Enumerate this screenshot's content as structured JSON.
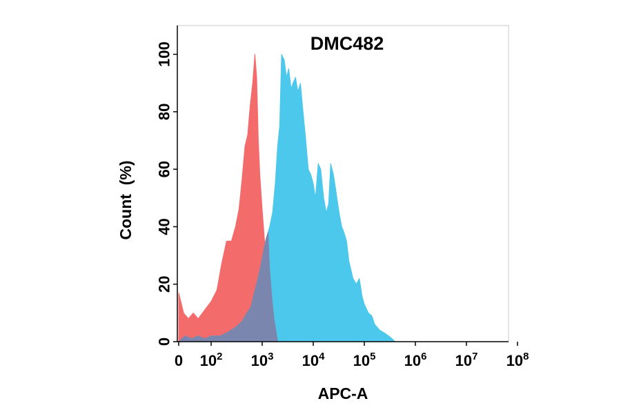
{
  "chart_data": {
    "type": "area",
    "title": "DMC482",
    "xlabel": "APC-A",
    "ylabel": "Count  (%)",
    "x_scale": "biexponential",
    "xlim": [
      0,
      100000000
    ],
    "ylim": [
      0,
      110
    ],
    "x_ticks": [
      {
        "value": 0,
        "base": "0",
        "exp": ""
      },
      {
        "value": 100,
        "base": "10",
        "exp": "2"
      },
      {
        "value": 1000,
        "base": "10",
        "exp": "3"
      },
      {
        "value": 10000,
        "base": "10",
        "exp": "4"
      },
      {
        "value": 100000,
        "base": "10",
        "exp": "5"
      },
      {
        "value": 1000000,
        "base": "10",
        "exp": "6"
      },
      {
        "value": 10000000,
        "base": "10",
        "exp": "7"
      },
      {
        "value": 100000000,
        "base": "10",
        "exp": "8"
      }
    ],
    "y_ticks": [
      "0",
      "20",
      "40",
      "60",
      "80",
      "100"
    ],
    "grid": false,
    "legend": "none",
    "series": [
      {
        "color": "#f36b6b",
        "x": [
          0,
          15,
          30,
          45,
          60,
          80,
          100,
          130,
          160,
          200,
          250,
          300,
          350,
          400,
          460,
          520,
          580,
          650,
          720,
          780,
          840,
          900,
          1000,
          1100,
          1250,
          1400,
          1550,
          1700,
          1850,
          2000
        ],
        "y": [
          17,
          10,
          8,
          10,
          8,
          11,
          14,
          18,
          27,
          35,
          35,
          40,
          46,
          56,
          68,
          72,
          82,
          90,
          100,
          92,
          70,
          58,
          46,
          36,
          25,
          15,
          8,
          4,
          1,
          0
        ]
      },
      {
        "color": "#4cc8ec",
        "x": [
          0,
          20,
          40,
          60,
          80,
          100,
          150,
          200,
          300,
          400,
          500,
          600,
          700,
          800,
          900,
          1000,
          1100,
          1200,
          1300,
          1400,
          1600,
          1800,
          2000,
          2200,
          2400,
          2700,
          3000,
          3300,
          3700,
          4000,
          4500,
          5000,
          5600,
          6300,
          7000,
          8000,
          9000,
          10000,
          11000,
          12500,
          14000,
          16000,
          18000,
          20000,
          22000,
          25000,
          28000,
          32000,
          36000,
          40000,
          45000,
          50000,
          60000,
          70000,
          80000,
          90000,
          100000,
          120000,
          140000,
          160000,
          200000,
          250000,
          300000,
          350000,
          400000,
          500000,
          600000
        ],
        "y": [
          0,
          2,
          1,
          2,
          1,
          2,
          2,
          3,
          5,
          7,
          10,
          12,
          17,
          21,
          25,
          29,
          33,
          36,
          38,
          40,
          45,
          55,
          68,
          75,
          100,
          98,
          92,
          95,
          88,
          90,
          92,
          87,
          90,
          80,
          72,
          60,
          58,
          55,
          50,
          62,
          60,
          50,
          45,
          48,
          62,
          58,
          52,
          45,
          40,
          38,
          35,
          28,
          22,
          20,
          22,
          16,
          13,
          10,
          9,
          6,
          4,
          3,
          2,
          1,
          0,
          0,
          0
        ]
      },
      {
        "color": "#7a86ae",
        "x": [
          0,
          20,
          40,
          60,
          80,
          100,
          150,
          200,
          300,
          400,
          500,
          600,
          700,
          800,
          900,
          1000,
          1100,
          1200,
          1300,
          1400,
          1550,
          1700,
          1850,
          2000
        ],
        "y": [
          0,
          2,
          1,
          2,
          1,
          2,
          2,
          3,
          5,
          7,
          10,
          12,
          17,
          21,
          25,
          29,
          33,
          36,
          38,
          25,
          15,
          8,
          4,
          0
        ]
      }
    ]
  }
}
